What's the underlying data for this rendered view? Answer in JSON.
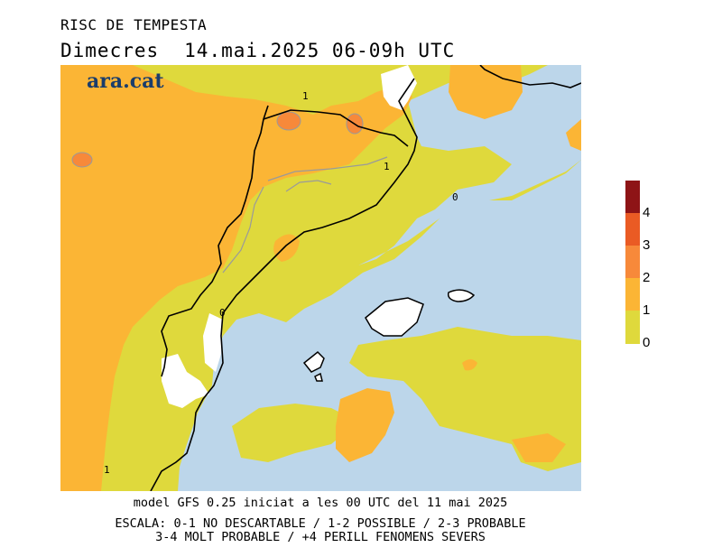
{
  "header": {
    "title": "RISC DE TEMPESTA",
    "day": "Dimecres",
    "datetime": "14.mai.2025 06-09h UTC"
  },
  "brand": {
    "logo_text": "ara.cat"
  },
  "map": {
    "contour_labels": [
      "1",
      "1",
      "0",
      "0",
      "1"
    ],
    "colors": {
      "sea": "#bcd6ea",
      "level_0_1": "#dfd93c",
      "level_1_2": "#fbb535",
      "level_2_3": "#f7893a",
      "level_3_4": "#ea5b24",
      "level_4_plus": "#8e1416",
      "land_white": "#ffffff",
      "contour": "#9a9a9a"
    }
  },
  "legend": {
    "labels": [
      "4",
      "3",
      "2",
      "1",
      "0"
    ],
    "colors": [
      "#8e1416",
      "#ea5b24",
      "#f7893a",
      "#fbb535",
      "#dfd93c"
    ]
  },
  "footer": {
    "model_line": "model GFS 0.25 iniciat a les 00 UTC del 11 mai 2025",
    "scale_line1": "ESCALA: 0-1 NO DESCARTABLE / 1-2 POSSIBLE / 2-3 PROBABLE",
    "scale_line2": "3-4 MOLT PROBABLE / +4 PERILL FENOMENS SEVERS"
  }
}
